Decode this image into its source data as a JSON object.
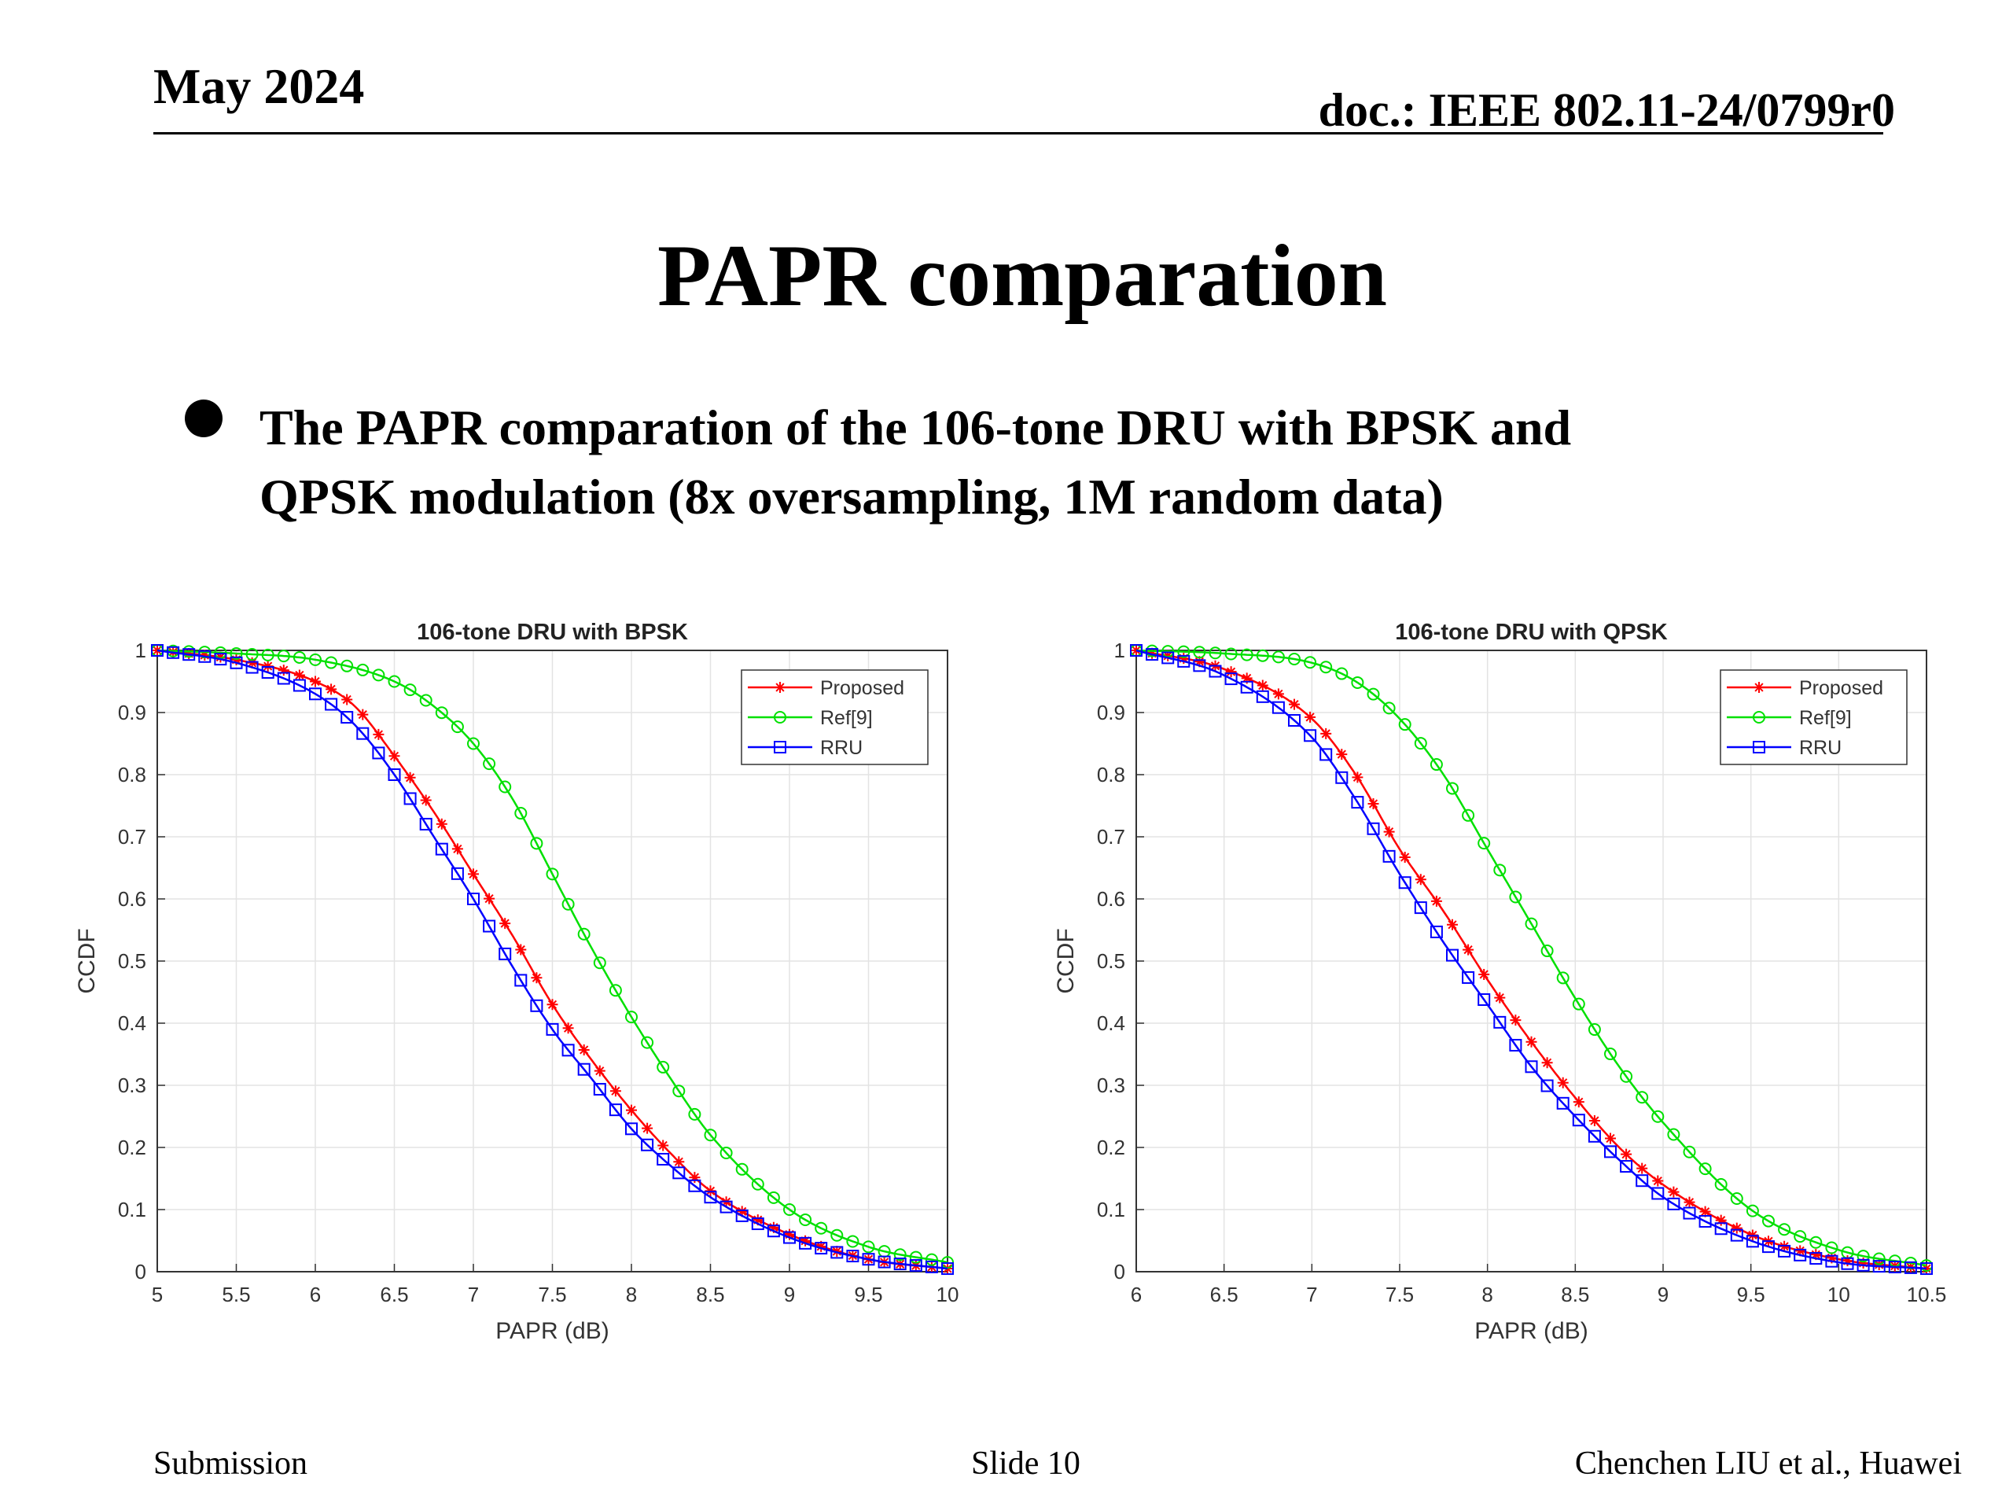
{
  "header": {
    "date": "May 2024",
    "doc": "doc.: IEEE 802.11-24/0799r0"
  },
  "slide_title": "PAPR comparation",
  "bullet": {
    "line1": "The PAPR comparation of the 106-tone DRU with BPSK and",
    "line2": "QPSK modulation (8x oversampling, 1M random data)"
  },
  "footer": {
    "left": "Submission",
    "center": "Slide 10",
    "right": "Chenchen LIU et al., Huawei"
  },
  "colors": {
    "proposed": "#ff0000",
    "ref9": "#00e000",
    "rru": "#0000ff"
  },
  "chart_data": [
    {
      "type": "line",
      "title": "106-tone DRU with BPSK",
      "xlabel": "PAPR (dB)",
      "ylabel": "CCDF",
      "xlim": [
        5,
        10
      ],
      "ylim": [
        0,
        1
      ],
      "xticks": [
        "5",
        "5.5",
        "6",
        "6.5",
        "7",
        "7.5",
        "8",
        "8.5",
        "9",
        "9.5",
        "10"
      ],
      "yticks": [
        "0",
        "0.1",
        "0.2",
        "0.3",
        "0.4",
        "0.5",
        "0.6",
        "0.7",
        "0.8",
        "0.9",
        "1"
      ],
      "grid": true,
      "legend_position": "top-right",
      "series": [
        {
          "name": "Proposed",
          "marker": "asterisk",
          "color": "#ff0000",
          "x": [
            5.0,
            5.5,
            6.0,
            6.25,
            6.5,
            6.75,
            7.0,
            7.25,
            7.5,
            7.75,
            8.0,
            8.25,
            8.5,
            9.0,
            9.5,
            10.0
          ],
          "y": [
            1.0,
            0.985,
            0.95,
            0.91,
            0.83,
            0.74,
            0.64,
            0.54,
            0.43,
            0.34,
            0.26,
            0.19,
            0.13,
            0.06,
            0.02,
            0.005
          ]
        },
        {
          "name": "Ref[9]",
          "marker": "circle",
          "color": "#00e000",
          "x": [
            5.0,
            5.5,
            6.0,
            6.5,
            6.75,
            7.0,
            7.25,
            7.5,
            7.75,
            8.0,
            8.25,
            8.5,
            9.0,
            9.5,
            10.0
          ],
          "y": [
            1.0,
            0.995,
            0.985,
            0.95,
            0.91,
            0.85,
            0.76,
            0.64,
            0.52,
            0.41,
            0.31,
            0.22,
            0.1,
            0.04,
            0.015
          ]
        },
        {
          "name": "RRU",
          "marker": "square",
          "color": "#0000ff",
          "x": [
            5.0,
            5.5,
            6.0,
            6.25,
            6.5,
            6.75,
            7.0,
            7.25,
            7.5,
            7.75,
            8.0,
            8.25,
            8.5,
            9.0,
            9.5,
            10.0
          ],
          "y": [
            1.0,
            0.98,
            0.93,
            0.88,
            0.8,
            0.7,
            0.6,
            0.49,
            0.39,
            0.31,
            0.23,
            0.17,
            0.12,
            0.055,
            0.02,
            0.005
          ]
        }
      ]
    },
    {
      "type": "line",
      "title": "106-tone DRU with QPSK",
      "xlabel": "PAPR (dB)",
      "ylabel": "CCDF",
      "xlim": [
        6,
        10.5
      ],
      "ylim": [
        0,
        1
      ],
      "xticks": [
        "6",
        "6.5",
        "7",
        "7.5",
        "8",
        "8.5",
        "9",
        "9.5",
        "10",
        "10.5"
      ],
      "yticks": [
        "0",
        "0.1",
        "0.2",
        "0.3",
        "0.4",
        "0.5",
        "0.6",
        "0.7",
        "0.8",
        "0.9",
        "1"
      ],
      "grid": true,
      "legend_position": "top-right",
      "series": [
        {
          "name": "Proposed",
          "marker": "asterisk",
          "color": "#ff0000",
          "x": [
            6.0,
            6.5,
            7.0,
            7.25,
            7.5,
            7.75,
            8.0,
            8.25,
            8.5,
            8.75,
            9.0,
            9.5,
            10.0,
            10.5
          ],
          "y": [
            1.0,
            0.97,
            0.89,
            0.8,
            0.68,
            0.58,
            0.47,
            0.37,
            0.28,
            0.2,
            0.14,
            0.06,
            0.02,
            0.005
          ]
        },
        {
          "name": "Ref[9]",
          "marker": "circle",
          "color": "#00e000",
          "x": [
            6.0,
            6.5,
            7.0,
            7.25,
            7.5,
            7.75,
            8.0,
            8.25,
            8.5,
            8.75,
            9.0,
            9.5,
            10.0,
            10.5
          ],
          "y": [
            1.0,
            0.995,
            0.98,
            0.95,
            0.89,
            0.8,
            0.68,
            0.56,
            0.44,
            0.33,
            0.24,
            0.1,
            0.035,
            0.01
          ]
        },
        {
          "name": "RRU",
          "marker": "square",
          "color": "#0000ff",
          "x": [
            6.0,
            6.5,
            7.0,
            7.25,
            7.5,
            7.75,
            8.0,
            8.25,
            8.5,
            8.75,
            9.0,
            9.5,
            10.0,
            10.5
          ],
          "y": [
            1.0,
            0.96,
            0.86,
            0.76,
            0.64,
            0.53,
            0.43,
            0.33,
            0.25,
            0.18,
            0.12,
            0.05,
            0.015,
            0.005
          ]
        }
      ]
    }
  ]
}
